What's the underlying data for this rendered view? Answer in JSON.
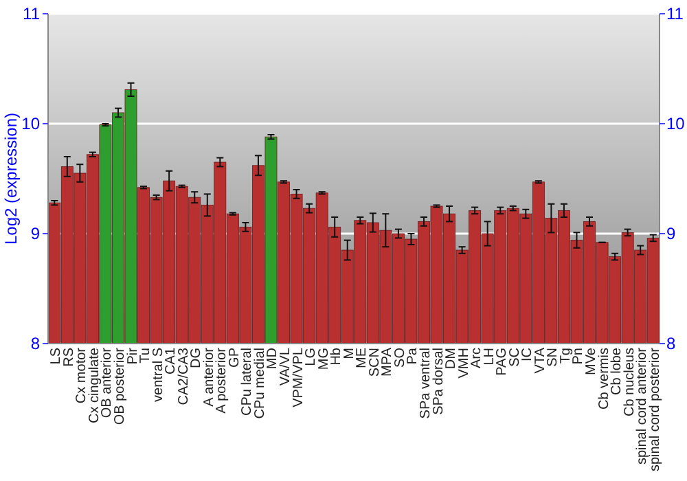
{
  "chart_data": {
    "type": "bar",
    "ylabel": "Log2 (expression)",
    "categories": [
      "LS",
      "RS",
      "Cx motor",
      "Cx cingulate",
      "OB anterior",
      "OB posterior",
      "Pir",
      "Tu",
      "ventral S",
      "CA1",
      "CA2/CA3",
      "DG",
      "A anterior",
      "A posterior",
      "GP",
      "CPu lateral",
      "CPu medial",
      "MD",
      "VA/VL",
      "VPM/VPL",
      "LG",
      "MG",
      "Hb",
      "M",
      "ME",
      "SCN",
      "MPA",
      "SO",
      "Pa",
      "SPa ventral",
      "SPa dorsal",
      "DM",
      "VMH",
      "Arc",
      "LH",
      "PAG",
      "SC",
      "IC",
      "VTA",
      "SN",
      "Tg",
      "Pn",
      "MVe",
      "Cb vermis",
      "Cb lobe",
      "Cb nucleus",
      "spinal cord anterior",
      "spinal cord posterior"
    ],
    "values": [
      9.28,
      9.61,
      9.55,
      9.72,
      9.99,
      10.1,
      10.31,
      9.42,
      9.33,
      9.48,
      9.43,
      9.33,
      9.26,
      9.65,
      9.18,
      9.06,
      9.62,
      9.88,
      9.47,
      9.36,
      9.23,
      9.37,
      9.06,
      8.85,
      9.12,
      9.1,
      9.03,
      9.0,
      8.95,
      9.11,
      9.25,
      9.18,
      8.85,
      9.21,
      9.0,
      9.21,
      9.23,
      9.18,
      9.47,
      9.14,
      9.21,
      8.94,
      9.11,
      8.92,
      8.79,
      9.01,
      8.85,
      8.96
    ],
    "errors": [
      0.02,
      0.09,
      0.08,
      0.02,
      0.01,
      0.04,
      0.06,
      0.01,
      0.02,
      0.09,
      0.01,
      0.05,
      0.1,
      0.04,
      0.01,
      0.04,
      0.09,
      0.02,
      0.01,
      0.04,
      0.04,
      0.01,
      0.09,
      0.09,
      0.03,
      0.085,
      0.15,
      0.04,
      0.05,
      0.04,
      0.01,
      0.07,
      0.03,
      0.03,
      0.11,
      0.03,
      0.02,
      0.04,
      0.01,
      0.13,
      0.06,
      0.07,
      0.04,
      0.0,
      0.03,
      0.03,
      0.04,
      0.03
    ],
    "colors": [
      "#b83030",
      "#b83030",
      "#b83030",
      "#b83030",
      "#2e9e2e",
      "#2e9e2e",
      "#2e9e2e",
      "#b83030",
      "#b83030",
      "#b83030",
      "#b83030",
      "#b83030",
      "#b83030",
      "#b83030",
      "#b83030",
      "#b83030",
      "#b83030",
      "#2e9e2e",
      "#b83030",
      "#b83030",
      "#b83030",
      "#b83030",
      "#b83030",
      "#b83030",
      "#b83030",
      "#b83030",
      "#b83030",
      "#b83030",
      "#b83030",
      "#b83030",
      "#b83030",
      "#b83030",
      "#b83030",
      "#b83030",
      "#b83030",
      "#b83030",
      "#b83030",
      "#b83030",
      "#b83030",
      "#b83030",
      "#b83030",
      "#b83030",
      "#b83030",
      "#b83030",
      "#b83030",
      "#b83030",
      "#b83030",
      "#b83030"
    ],
    "ylim": [
      8,
      11
    ],
    "yticks": [
      8,
      9,
      10,
      11
    ],
    "y2lim": [
      8,
      11
    ],
    "y2ticks": [
      8,
      9,
      10,
      11
    ],
    "grid": "y"
  }
}
